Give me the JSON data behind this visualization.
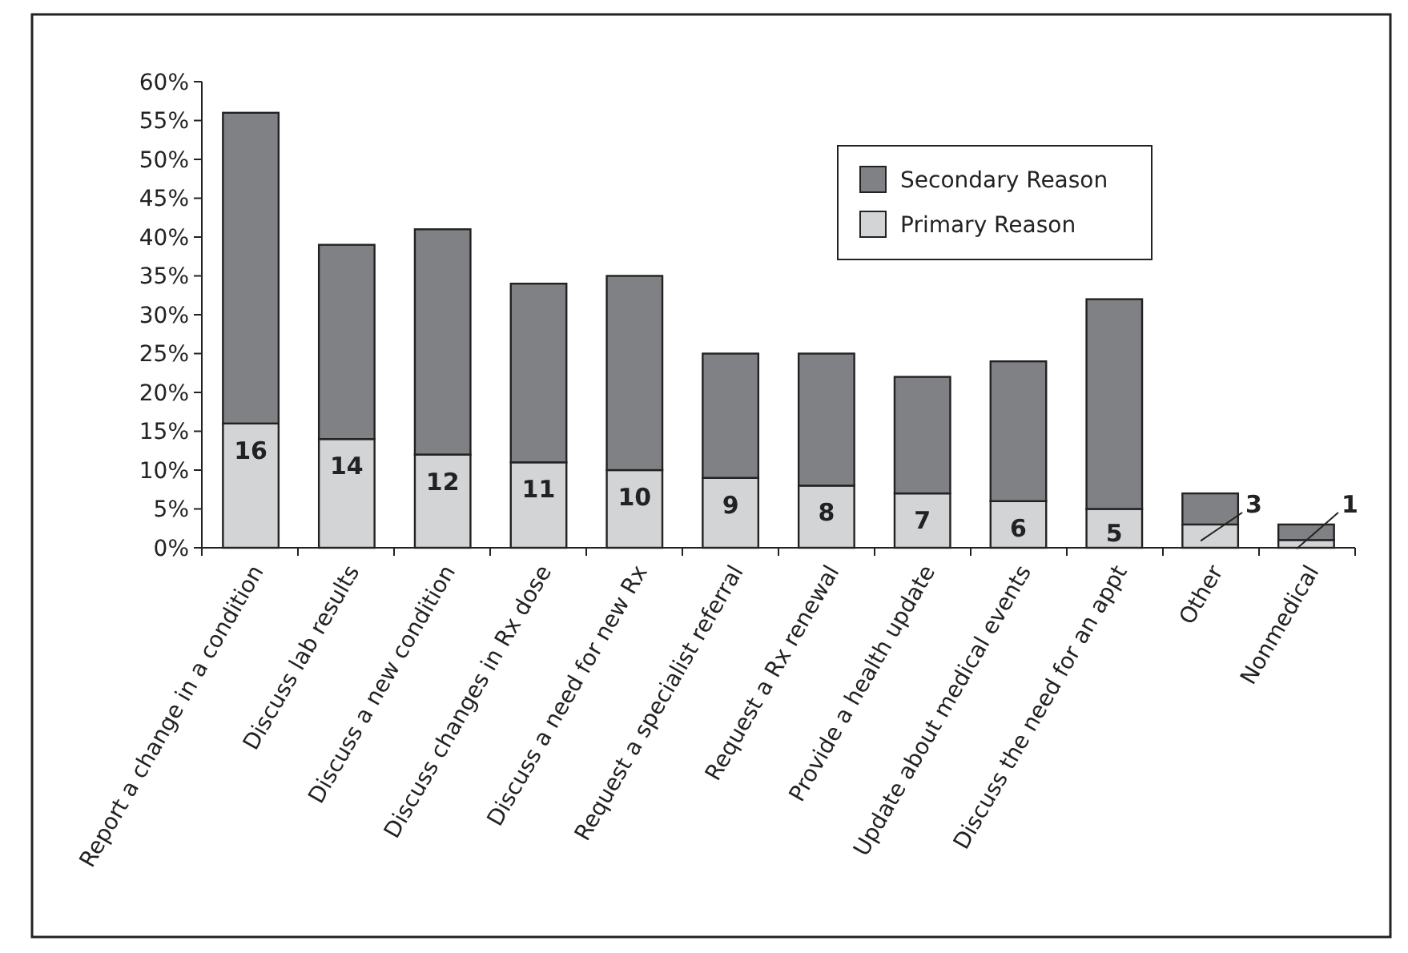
{
  "chart_data": {
    "type": "bar",
    "stacked": true,
    "categories": [
      "Report a change in a condition",
      "Discuss lab results",
      "Discuss a new condition",
      "Discuss changes in Rx dose",
      "Discuss a need for new Rx",
      "Request a specialist referral",
      "Request a Rx renewal",
      "Provide a health update",
      "Update about medical events",
      "Discuss the need for an appt",
      "Other",
      "Nonmedical"
    ],
    "series": [
      {
        "name": "Primary Reason",
        "color": "#d3d4d6",
        "values": [
          16,
          14,
          12,
          11,
          10,
          9,
          8,
          7,
          6,
          5,
          3,
          1
        ],
        "data_labels": true
      },
      {
        "name": "Secondary Reason",
        "color": "#808184",
        "values": [
          40,
          25,
          29,
          23,
          25,
          16,
          17,
          15,
          18,
          27,
          4,
          2
        ]
      }
    ],
    "ylim": [
      0,
      60
    ],
    "yticks": [
      {
        "value": 0,
        "label": "0%"
      },
      {
        "value": 5,
        "label": "5%"
      },
      {
        "value": 10,
        "label": "10%"
      },
      {
        "value": 15,
        "label": "15%"
      },
      {
        "value": 20,
        "label": "20%"
      },
      {
        "value": 25,
        "label": "25%"
      },
      {
        "value": 30,
        "label": "30%"
      },
      {
        "value": 35,
        "label": "35%"
      },
      {
        "value": 40,
        "label": "40%"
      },
      {
        "value": 45,
        "label": "45%"
      },
      {
        "value": 50,
        "label": "50%"
      },
      {
        "value": 55,
        "label": "55%"
      },
      {
        "value": 60,
        "label": "60%"
      }
    ],
    "grid": false,
    "legend": "top right"
  }
}
